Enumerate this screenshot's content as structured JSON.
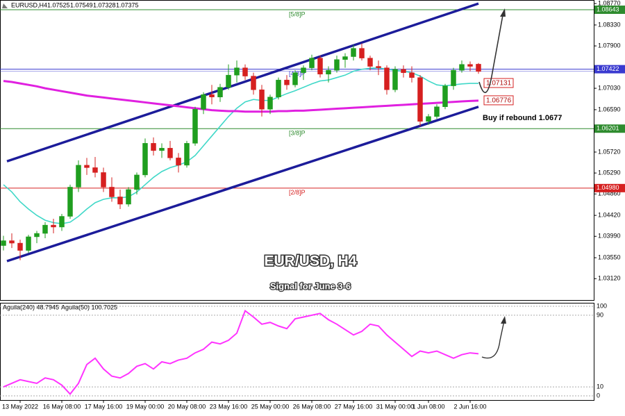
{
  "chart_data": [
    {
      "type": "candlestick",
      "symbol": "EURUSD,H4",
      "title": "EUR/USD, H4",
      "subtitle": "Signal for June 3-6",
      "note": "Buy if rebound 1.0677",
      "categories": [
        null,
        null,
        "13 May 2022",
        null,
        null,
        null,
        null,
        "16 May 08:00",
        null,
        null,
        null,
        null,
        "17 May 16:00",
        null,
        null,
        null,
        null,
        "19 May 00:00",
        null,
        null,
        null,
        null,
        "20 May 08:00",
        null,
        null,
        null,
        null,
        "23 May 16:00",
        null,
        null,
        null,
        null,
        "25 May 00:00",
        null,
        null,
        null,
        null,
        "26 May 08:00",
        null,
        null,
        null,
        null,
        "27 May 16:00",
        null,
        null,
        null,
        null,
        "31 May 00:00",
        null,
        null,
        null,
        "1 Jun 08:00",
        null,
        null,
        null,
        null,
        "2 Jun 16:00",
        null
      ],
      "ohlc": [
        [
          1.038,
          1.04,
          1.037,
          1.039
        ],
        [
          1.039,
          1.0405,
          1.0375,
          1.0385
        ],
        [
          1.0385,
          1.0392,
          1.035,
          1.037
        ],
        [
          1.037,
          1.0402,
          1.0365,
          1.0398
        ],
        [
          1.0398,
          1.041,
          1.0385,
          1.0405
        ],
        [
          1.0405,
          1.0428,
          1.0395,
          1.0422
        ],
        [
          1.0422,
          1.0435,
          1.0405,
          1.0418
        ],
        [
          1.0418,
          1.0445,
          1.041,
          1.044
        ],
        [
          1.044,
          1.0505,
          1.0435,
          1.05
        ],
        [
          1.05,
          1.0555,
          1.049,
          1.0545
        ],
        [
          1.0545,
          1.056,
          1.0525,
          1.054
        ],
        [
          1.054,
          1.0562,
          1.052,
          1.053
        ],
        [
          1.053,
          1.054,
          1.049,
          1.05
        ],
        [
          1.05,
          1.052,
          1.047,
          1.048
        ],
        [
          1.048,
          1.0495,
          1.0455,
          1.0465
        ],
        [
          1.0465,
          1.05,
          1.046,
          1.0495
        ],
        [
          1.0495,
          1.053,
          1.0485,
          1.0525
        ],
        [
          1.0525,
          1.06,
          1.052,
          1.059
        ],
        [
          1.059,
          1.0602,
          1.0565,
          1.0575
        ],
        [
          1.0575,
          1.059,
          1.056,
          1.058
        ],
        [
          1.058,
          1.0595,
          1.0555,
          1.056
        ],
        [
          1.056,
          1.057,
          1.053,
          1.0545
        ],
        [
          1.0545,
          1.0595,
          1.054,
          1.059
        ],
        [
          1.059,
          1.0665,
          1.0585,
          1.066
        ],
        [
          1.066,
          1.0695,
          1.065,
          1.069
        ],
        [
          1.069,
          1.071,
          1.067,
          1.0685
        ],
        [
          1.0685,
          1.0712,
          1.0675,
          1.0705
        ],
        [
          1.0705,
          1.0752,
          1.07,
          1.073
        ],
        [
          1.073,
          1.076,
          1.0715,
          1.0745
        ],
        [
          1.0745,
          1.0752,
          1.072,
          1.0728
        ],
        [
          1.0728,
          1.0735,
          1.069,
          1.07
        ],
        [
          1.07,
          1.071,
          1.0645,
          1.066
        ],
        [
          1.066,
          1.069,
          1.065,
          1.0685
        ],
        [
          1.0685,
          1.0725,
          1.068,
          1.072
        ],
        [
          1.072,
          1.073,
          1.07,
          1.071
        ],
        [
          1.071,
          1.074,
          1.0705,
          1.0735
        ],
        [
          1.0735,
          1.075,
          1.072,
          1.0745
        ],
        [
          1.0745,
          1.0772,
          1.074,
          1.0765
        ],
        [
          1.0765,
          1.077,
          1.0725,
          1.0732
        ],
        [
          1.0732,
          1.0748,
          1.0715,
          1.074
        ],
        [
          1.074,
          1.077,
          1.0735,
          1.0762
        ],
        [
          1.0762,
          1.0775,
          1.0745,
          1.0768
        ],
        [
          1.0768,
          1.0792,
          1.076,
          1.0785
        ],
        [
          1.0785,
          1.0795,
          1.076,
          1.0765
        ],
        [
          1.0765,
          1.077,
          1.074,
          1.0748
        ],
        [
          1.0748,
          1.076,
          1.073,
          1.0745
        ],
        [
          1.0745,
          1.075,
          1.069,
          1.07
        ],
        [
          1.07,
          1.0748,
          1.0695,
          1.0742
        ],
        [
          1.0742,
          1.075,
          1.0725,
          1.0735
        ],
        [
          1.0735,
          1.0748,
          1.0715,
          1.0725
        ],
        [
          1.0725,
          1.073,
          1.0625,
          1.0635
        ],
        [
          1.0635,
          1.065,
          1.0628,
          1.0645
        ],
        [
          1.0645,
          1.067,
          1.064,
          1.0665
        ],
        [
          1.0665,
          1.0712,
          1.066,
          1.0708
        ],
        [
          1.0708,
          1.0745,
          1.07,
          1.074
        ],
        [
          1.074,
          1.076,
          1.0735,
          1.0752
        ],
        [
          1.0752,
          1.0758,
          1.0738,
          1.0748
        ],
        [
          1.07525,
          1.07549,
          1.07328,
          1.07375
        ]
      ],
      "bull_color": "#1f9e1f",
      "bear_color": "#d62020",
      "series": [
        {
          "color": "#40d8c8",
          "values": [
            1.0505,
            1.049,
            1.047,
            1.0455,
            1.0442,
            1.0432,
            1.0427,
            1.0425,
            1.0428,
            1.044,
            1.0455,
            1.0468,
            1.0475,
            1.0478,
            1.0478,
            1.048,
            1.049,
            1.0505,
            1.052,
            1.0532,
            1.054,
            1.0545,
            1.0552,
            1.0565,
            1.0585,
            1.0605,
            1.0625,
            1.0645,
            1.0662,
            1.0675,
            1.068,
            1.0678,
            1.0678,
            1.0685,
            1.0692,
            1.0698,
            1.0705,
            1.0712,
            1.0718,
            1.072,
            1.0725,
            1.073,
            1.0738,
            1.0742,
            1.0744,
            1.0745,
            1.0742,
            1.074,
            1.0738,
            1.0735,
            1.0728,
            1.0718,
            1.071,
            1.0708,
            1.071,
            1.0712,
            1.0713,
            1.07131
          ]
        },
        {
          "color": "#e020e0",
          "values": [
            1.0718,
            1.0716,
            1.0713,
            1.071,
            1.0707,
            1.0703,
            1.07,
            1.0697,
            1.0694,
            1.0691,
            1.0688,
            1.0686,
            1.0684,
            1.0682,
            1.068,
            1.0678,
            1.0676,
            1.0674,
            1.0672,
            1.067,
            1.0668,
            1.0666,
            1.0664,
            1.0662,
            1.066,
            1.0658,
            1.0657,
            1.0656,
            1.0656,
            1.0655,
            1.0655,
            1.0655,
            1.0655,
            1.0656,
            1.0656,
            1.0657,
            1.0657,
            1.0658,
            1.0659,
            1.066,
            1.0661,
            1.0662,
            1.0663,
            1.0664,
            1.0665,
            1.0666,
            1.0667,
            1.0668,
            1.0669,
            1.067,
            1.0671,
            1.0672,
            1.0673,
            1.0674,
            1.0675,
            1.0676,
            1.0677,
            1.06776
          ]
        }
      ],
      "levels": [
        {
          "name": "[5/8]P",
          "value": 1.08643,
          "color": "#2e8b2e"
        },
        {
          "name": "[4/8]P",
          "value": 1.07422,
          "color": "#3a3ad0"
        },
        {
          "name": "[3/8]P",
          "value": 1.06201,
          "color": "#2e8b2e"
        },
        {
          "name": "[2/8]P",
          "value": 1.0498,
          "value_label": "1.04980",
          "color": "#d62020"
        }
      ],
      "channel": {
        "color": "#1c1c9a",
        "upper": [
          1.0553,
          1.0877
        ],
        "lower": [
          1.0348,
          1.0665
        ]
      },
      "ylim": [
        1.0271,
        1.088
      ],
      "yticks": [
        {
          "value": 1.0877,
          "label": "1.08770"
        },
        {
          "value": 1.0833,
          "label": "1.08330"
        },
        {
          "value": 1.079,
          "label": "1.07900"
        },
        {
          "value": 1.0703,
          "label": "1.07030"
        },
        {
          "value": 1.0659,
          "label": "1.06590"
        },
        {
          "value": 1.0572,
          "label": "1.05720"
        },
        {
          "value": 1.0529,
          "label": "1.05290"
        },
        {
          "value": 1.0486,
          "label": "1.04860"
        },
        {
          "value": 1.0442,
          "label": "1.04420"
        },
        {
          "value": 1.0399,
          "label": "1.03990"
        },
        {
          "value": 1.0355,
          "label": "1.03550"
        },
        {
          "value": 1.0312,
          "label": "1.03120"
        }
      ]
    },
    {
      "type": "line",
      "legend": [
        "Aguila(240) 48.7945",
        "Aguila(50) 100.7025"
      ],
      "series": [
        {
          "color": "#ff33ff",
          "values": [
            10,
            14,
            18,
            16,
            14,
            20,
            18,
            12,
            2,
            14,
            35,
            42,
            30,
            22,
            20,
            25,
            33,
            36,
            30,
            38,
            36,
            40,
            42,
            48,
            52,
            60,
            58,
            62,
            70,
            95,
            88,
            80,
            82,
            78,
            75,
            86,
            88,
            90,
            92,
            85,
            80,
            74,
            68,
            72,
            80,
            78,
            68,
            60,
            52,
            44,
            50,
            48,
            50,
            46,
            42,
            46,
            48,
            47
          ]
        }
      ],
      "ylim": [
        0,
        100
      ],
      "yticks": [
        0,
        10,
        90,
        100
      ],
      "grid": true
    }
  ]
}
